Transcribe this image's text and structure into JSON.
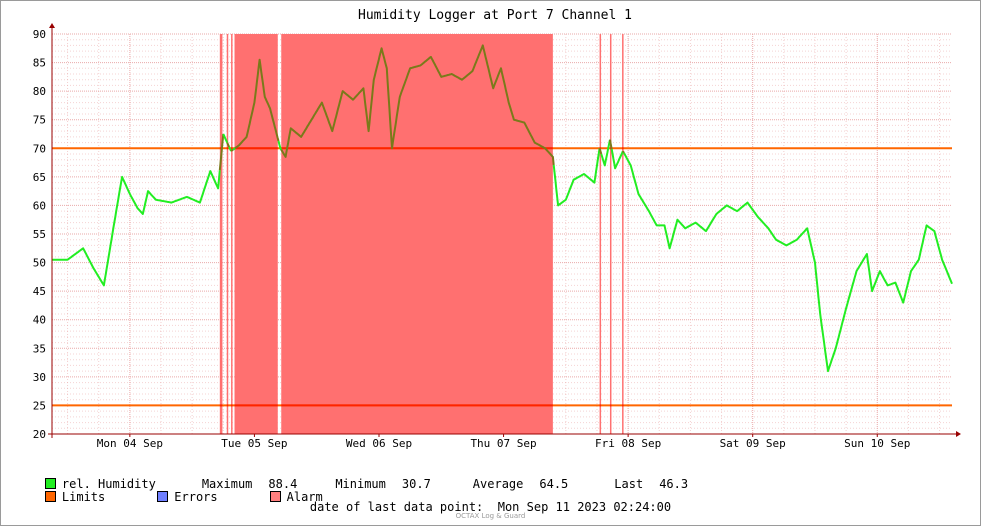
{
  "title": "Humidity Logger at Port 7 Channel 1",
  "chart_data": {
    "type": "line",
    "title": "Humidity Logger at Port 7 Channel 1",
    "ylim": [
      20,
      90
    ],
    "y_ticks": [
      20,
      25,
      30,
      35,
      40,
      45,
      50,
      55,
      60,
      65,
      70,
      75,
      80,
      85,
      90
    ],
    "x_range": [
      "2023-09-03 21:00",
      "2023-09-11 02:24"
    ],
    "x_ticks": [
      {
        "t": "2023-09-04 12:00",
        "label": "Mon 04 Sep"
      },
      {
        "t": "2023-09-05 12:00",
        "label": "Tue 05 Sep"
      },
      {
        "t": "2023-09-06 12:00",
        "label": "Wed 06 Sep"
      },
      {
        "t": "2023-09-07 12:00",
        "label": "Thu 07 Sep"
      },
      {
        "t": "2023-09-08 12:00",
        "label": "Fri 08 Sep"
      },
      {
        "t": "2023-09-09 12:00",
        "label": "Sat 09 Sep"
      },
      {
        "t": "2023-09-10 12:00",
        "label": "Sun 10 Sep"
      }
    ],
    "grid": true,
    "limits": [
      70,
      25
    ],
    "series": [
      {
        "name": "rel. Humidity",
        "color": "#22ee22",
        "points": [
          [
            "2023-09-03 21:00",
            50.5
          ],
          [
            "2023-09-04 00:00",
            50.5
          ],
          [
            "2023-09-04 03:00",
            52.5
          ],
          [
            "2023-09-04 05:00",
            49.0
          ],
          [
            "2023-09-04 07:00",
            46.0
          ],
          [
            "2023-09-04 09:00",
            57.0
          ],
          [
            "2023-09-04 10:30",
            65.0
          ],
          [
            "2023-09-04 12:00",
            62.0
          ],
          [
            "2023-09-04 13:30",
            59.5
          ],
          [
            "2023-09-04 14:30",
            58.5
          ],
          [
            "2023-09-04 15:30",
            62.5
          ],
          [
            "2023-09-04 17:00",
            61.0
          ],
          [
            "2023-09-04 20:00",
            60.5
          ],
          [
            "2023-09-04 23:00",
            61.5
          ],
          [
            "2023-09-05 01:30",
            60.5
          ],
          [
            "2023-09-05 03:30",
            66.0
          ],
          [
            "2023-09-05 05:00",
            63.0
          ],
          [
            "2023-09-05 06:00",
            72.5
          ],
          [
            "2023-09-05 07:30",
            69.5
          ],
          [
            "2023-09-05 09:00",
            70.5
          ],
          [
            "2023-09-05 10:30",
            72.0
          ],
          [
            "2023-09-05 12:00",
            78.0
          ],
          [
            "2023-09-05 13:00",
            85.5
          ],
          [
            "2023-09-05 14:00",
            79.0
          ],
          [
            "2023-09-05 15:00",
            77.0
          ],
          [
            "2023-09-05 17:00",
            70.0
          ],
          [
            "2023-09-05 18:00",
            68.5
          ],
          [
            "2023-09-05 19:00",
            73.5
          ],
          [
            "2023-09-05 21:00",
            72.0
          ],
          [
            "2023-09-05 23:00",
            75.0
          ],
          [
            "2023-09-06 01:00",
            78.0
          ],
          [
            "2023-09-06 03:00",
            73.0
          ],
          [
            "2023-09-06 05:00",
            80.0
          ],
          [
            "2023-09-06 07:00",
            78.5
          ],
          [
            "2023-09-06 09:00",
            80.5
          ],
          [
            "2023-09-06 10:00",
            73.0
          ],
          [
            "2023-09-06 11:00",
            82.0
          ],
          [
            "2023-09-06 12:30",
            87.5
          ],
          [
            "2023-09-06 13:30",
            84.0
          ],
          [
            "2023-09-06 14:30",
            70.0
          ],
          [
            "2023-09-06 16:00",
            79.0
          ],
          [
            "2023-09-06 18:00",
            84.0
          ],
          [
            "2023-09-06 20:00",
            84.5
          ],
          [
            "2023-09-06 22:00",
            86.0
          ],
          [
            "2023-09-07 00:00",
            82.5
          ],
          [
            "2023-09-07 02:00",
            83.0
          ],
          [
            "2023-09-07 04:00",
            82.0
          ],
          [
            "2023-09-07 06:00",
            83.5
          ],
          [
            "2023-09-07 08:00",
            88.0
          ],
          [
            "2023-09-07 10:00",
            80.5
          ],
          [
            "2023-09-07 11:30",
            84.0
          ],
          [
            "2023-09-07 13:00",
            78.0
          ],
          [
            "2023-09-07 14:00",
            75.0
          ],
          [
            "2023-09-07 16:00",
            74.5
          ],
          [
            "2023-09-07 18:00",
            71.0
          ],
          [
            "2023-09-07 20:00",
            70.0
          ],
          [
            "2023-09-07 21:30",
            68.5
          ],
          [
            "2023-09-07 22:30",
            60.0
          ],
          [
            "2023-09-08 00:00",
            61.0
          ],
          [
            "2023-09-08 01:30",
            64.5
          ],
          [
            "2023-09-08 03:30",
            65.5
          ],
          [
            "2023-09-08 05:30",
            64.0
          ],
          [
            "2023-09-08 06:30",
            70.0
          ],
          [
            "2023-09-08 07:30",
            67.0
          ],
          [
            "2023-09-08 08:30",
            71.5
          ],
          [
            "2023-09-08 09:30",
            66.5
          ],
          [
            "2023-09-08 11:00",
            69.5
          ],
          [
            "2023-09-08 12:30",
            67.0
          ],
          [
            "2023-09-08 14:00",
            62.0
          ],
          [
            "2023-09-08 16:00",
            59.0
          ],
          [
            "2023-09-08 17:30",
            56.5
          ],
          [
            "2023-09-08 19:00",
            56.5
          ],
          [
            "2023-09-08 20:00",
            52.5
          ],
          [
            "2023-09-08 21:30",
            57.5
          ],
          [
            "2023-09-08 23:00",
            56.0
          ],
          [
            "2023-09-09 01:00",
            57.0
          ],
          [
            "2023-09-09 03:00",
            55.5
          ],
          [
            "2023-09-09 05:00",
            58.5
          ],
          [
            "2023-09-09 07:00",
            60.0
          ],
          [
            "2023-09-09 09:00",
            59.0
          ],
          [
            "2023-09-09 11:00",
            60.5
          ],
          [
            "2023-09-09 13:00",
            58.0
          ],
          [
            "2023-09-09 15:00",
            56.0
          ],
          [
            "2023-09-09 16:30",
            54.0
          ],
          [
            "2023-09-09 18:30",
            53.0
          ],
          [
            "2023-09-09 20:30",
            54.0
          ],
          [
            "2023-09-09 22:30",
            56.0
          ],
          [
            "2023-09-10 00:00",
            50.0
          ],
          [
            "2023-09-10 01:00",
            41.0
          ],
          [
            "2023-09-10 02:30",
            31.0
          ],
          [
            "2023-09-10 04:00",
            35.0
          ],
          [
            "2023-09-10 06:00",
            42.0
          ],
          [
            "2023-09-10 08:00",
            48.5
          ],
          [
            "2023-09-10 10:00",
            51.5
          ],
          [
            "2023-09-10 11:00",
            45.0
          ],
          [
            "2023-09-10 12:30",
            48.5
          ],
          [
            "2023-09-10 14:00",
            46.0
          ],
          [
            "2023-09-10 15:30",
            46.5
          ],
          [
            "2023-09-10 17:00",
            43.0
          ],
          [
            "2023-09-10 18:30",
            48.5
          ],
          [
            "2023-09-10 20:00",
            50.5
          ],
          [
            "2023-09-10 21:30",
            56.5
          ],
          [
            "2023-09-10 23:00",
            55.5
          ],
          [
            "2023-09-11 00:30",
            50.5
          ],
          [
            "2023-09-11 02:24",
            46.3
          ]
        ]
      }
    ],
    "alarm_periods": [
      [
        "2023-09-05 05:20",
        "2023-09-05 05:50"
      ],
      [
        "2023-09-05 06:40",
        "2023-09-05 06:50"
      ],
      [
        "2023-09-05 07:30",
        "2023-09-05 07:40"
      ],
      [
        "2023-09-05 08:10",
        "2023-09-05 16:30"
      ],
      [
        "2023-09-05 17:10",
        "2023-09-07 21:30"
      ],
      [
        "2023-09-08 06:30",
        "2023-09-08 06:40"
      ],
      [
        "2023-09-08 08:30",
        "2023-09-08 08:40"
      ],
      [
        "2023-09-08 10:50",
        "2023-09-08 11:00"
      ]
    ],
    "colors": {
      "limits": "#ff6600",
      "limit_over_alarm": "#ff2200",
      "errors": "#6f7fff",
      "alarm": "#ff7f7f",
      "alarm_fill": "#ff7070",
      "curve_over_alarm": "#7a7a1a",
      "grid": "#e8a0a0",
      "axis": "#990000"
    }
  },
  "legend": {
    "series_label": "rel. Humidity",
    "maximum_label": "Maximum",
    "maximum_value": "88.4",
    "minimum_label": "Minimum",
    "minimum_value": "30.7",
    "average_label": "Average",
    "average_value": "64.5",
    "last_label": "Last",
    "last_value": "46.3",
    "limits_label": "Limits",
    "errors_label": "Errors",
    "alarm_label": "Alarm"
  },
  "footer": {
    "date_label": "date of last data point:",
    "date_value": "Mon Sep 11 2023 02:24:00",
    "watermark": "OCTAX Log & Guard"
  }
}
